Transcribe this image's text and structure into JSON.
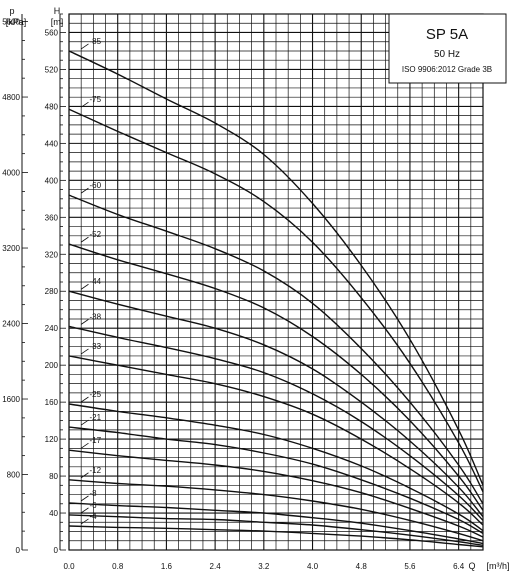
{
  "chart_data": {
    "type": "line",
    "title": "SP 5A",
    "subtitle": "50 Hz",
    "standard": "ISO 9906:2012 Grade 3B",
    "xlabel": "Q",
    "xunit": "[m³/h]",
    "ylabel": "H",
    "yunit": "[m]",
    "y2label": "p",
    "y2unit": "[kPa]",
    "xlim": [
      0,
      6.8
    ],
    "ylim": [
      0,
      580
    ],
    "y2lim": [
      0,
      5680
    ],
    "x_ticks": [
      "0.0",
      "0.8",
      "1.6",
      "2.4",
      "3.2",
      "4.0",
      "4.8",
      "5.6",
      "6.4"
    ],
    "y_ticks": [
      "0",
      "40",
      "80",
      "120",
      "160",
      "200",
      "240",
      "280",
      "320",
      "360",
      "400",
      "440",
      "480",
      "520",
      "560"
    ],
    "y2_ticks": [
      "0",
      "800",
      "1600",
      "2400",
      "3200",
      "4000",
      "4800",
      "5600"
    ],
    "x_tick_values": [
      0,
      0.8,
      1.6,
      2.4,
      3.2,
      4.0,
      4.8,
      5.6,
      6.4
    ],
    "y_tick_values": [
      0,
      40,
      80,
      120,
      160,
      200,
      240,
      280,
      320,
      360,
      400,
      440,
      480,
      520,
      560
    ],
    "y2_tick_values": [
      0,
      800,
      1600,
      2400,
      3200,
      4000,
      4800,
      5600
    ],
    "grid": true,
    "legend": "none",
    "line_color": "#111111",
    "series": [
      {
        "name": "-85",
        "x": [
          0,
          0.8,
          1.6,
          2.4,
          3.2,
          4.0,
          4.8,
          5.6,
          6.4,
          6.8
        ],
        "y": [
          540,
          515,
          488,
          462,
          428,
          375,
          308,
          228,
          130,
          70
        ]
      },
      {
        "name": "-75",
        "x": [
          0,
          0.8,
          1.6,
          2.4,
          3.2,
          4.0,
          4.8,
          5.6,
          6.4,
          6.8
        ],
        "y": [
          477,
          453,
          430,
          407,
          377,
          333,
          273,
          202,
          116,
          63
        ]
      },
      {
        "name": "-60",
        "x": [
          0,
          0.8,
          1.6,
          2.4,
          3.2,
          4.0,
          4.8,
          5.6,
          6.4,
          6.8
        ],
        "y": [
          384,
          363,
          345,
          326,
          302,
          267,
          218,
          160,
          92,
          50
        ]
      },
      {
        "name": "-52",
        "x": [
          0,
          0.8,
          1.6,
          2.4,
          3.2,
          4.0,
          4.8,
          5.6,
          6.4,
          6.8
        ],
        "y": [
          331,
          314,
          299,
          283,
          262,
          231,
          190,
          140,
          80,
          43
        ]
      },
      {
        "name": "-44",
        "x": [
          0,
          0.8,
          1.6,
          2.4,
          3.2,
          4.0,
          4.8,
          5.6,
          6.4,
          6.8
        ],
        "y": [
          280,
          266,
          253,
          240,
          222,
          196,
          160,
          118,
          68,
          36
        ]
      },
      {
        "name": "-38",
        "x": [
          0,
          0.8,
          1.6,
          2.4,
          3.2,
          4.0,
          4.8,
          5.6,
          6.4,
          6.8
        ],
        "y": [
          242,
          230,
          219,
          207,
          192,
          169,
          139,
          102,
          59,
          32
        ]
      },
      {
        "name": "-33",
        "x": [
          0,
          0.8,
          1.6,
          2.4,
          3.2,
          4.0,
          4.8,
          5.6,
          6.4,
          6.8
        ],
        "y": [
          210,
          200,
          190,
          180,
          166,
          147,
          120,
          88,
          51,
          27
        ]
      },
      {
        "name": "-25",
        "x": [
          0,
          0.8,
          1.6,
          2.4,
          3.2,
          4.0,
          4.8,
          5.6,
          6.4,
          6.8
        ],
        "y": [
          158,
          150,
          143,
          135,
          125,
          110,
          91,
          67,
          39,
          21
        ]
      },
      {
        "name": "-21",
        "x": [
          0,
          0.8,
          1.6,
          2.4,
          3.2,
          4.0,
          4.8,
          5.6,
          6.4,
          6.8
        ],
        "y": [
          133,
          127,
          120,
          114,
          105,
          93,
          76,
          56,
          33,
          18
        ]
      },
      {
        "name": "-17",
        "x": [
          0,
          0.8,
          1.6,
          2.4,
          3.2,
          4.0,
          4.8,
          5.6,
          6.4,
          6.8
        ],
        "y": [
          108,
          102,
          97,
          92,
          85,
          75,
          62,
          45,
          26,
          14
        ]
      },
      {
        "name": "-12",
        "x": [
          0,
          0.8,
          1.6,
          2.4,
          3.2,
          4.0,
          4.8,
          5.6,
          6.4,
          6.8
        ],
        "y": [
          76,
          72,
          69,
          65,
          60,
          53,
          44,
          32,
          18,
          10
        ]
      },
      {
        "name": "-8",
        "x": [
          0,
          0.8,
          1.6,
          2.4,
          3.2,
          4.0,
          4.8,
          5.6,
          6.4,
          6.8
        ],
        "y": [
          51,
          48,
          46,
          43,
          40,
          35,
          29,
          21,
          12,
          7
        ]
      },
      {
        "name": "-6",
        "x": [
          0,
          0.8,
          1.6,
          2.4,
          3.2,
          4.0,
          4.8,
          5.6,
          6.4,
          6.8
        ],
        "y": [
          38,
          36,
          34,
          33,
          30,
          27,
          22,
          16,
          9,
          5
        ]
      },
      {
        "name": "-4",
        "x": [
          0,
          0.8,
          1.6,
          2.4,
          3.2,
          4.0,
          4.8,
          5.6,
          6.4,
          6.8
        ],
        "y": [
          26,
          24.5,
          23.5,
          22,
          20.5,
          18,
          15,
          11,
          6,
          3.5
        ]
      }
    ]
  }
}
